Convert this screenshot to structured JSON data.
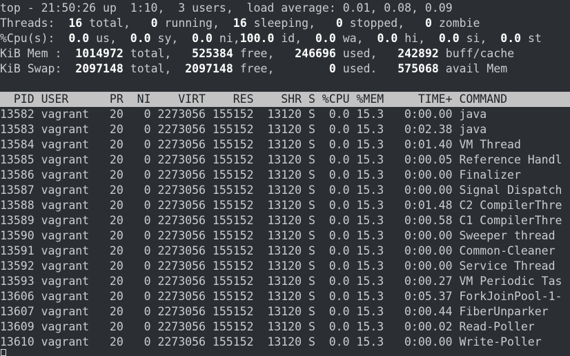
{
  "summary": [
    [
      {
        "t": "top - 21:50:26 up  1:10,  3 users,  load average: 0.01, 0.08, 0.09",
        "b": false
      }
    ],
    [
      {
        "t": "Threads: ",
        "b": false
      },
      {
        "t": " 16",
        "b": true
      },
      {
        "t": " total, ",
        "b": false
      },
      {
        "t": "  0",
        "b": true
      },
      {
        "t": " running, ",
        "b": false
      },
      {
        "t": " 16",
        "b": true
      },
      {
        "t": " sleeping, ",
        "b": false
      },
      {
        "t": "  0",
        "b": true
      },
      {
        "t": " stopped, ",
        "b": false
      },
      {
        "t": "  0",
        "b": true
      },
      {
        "t": " zombie",
        "b": false
      }
    ],
    [
      {
        "t": "%Cpu(s): ",
        "b": false
      },
      {
        "t": " 0.0",
        "b": true
      },
      {
        "t": " us, ",
        "b": false
      },
      {
        "t": " 0.0",
        "b": true
      },
      {
        "t": " sy, ",
        "b": false
      },
      {
        "t": " 0.0",
        "b": true
      },
      {
        "t": " ni,",
        "b": false
      },
      {
        "t": "100.0",
        "b": true
      },
      {
        "t": " id, ",
        "b": false
      },
      {
        "t": " 0.0",
        "b": true
      },
      {
        "t": " wa, ",
        "b": false
      },
      {
        "t": " 0.0",
        "b": true
      },
      {
        "t": " hi, ",
        "b": false
      },
      {
        "t": " 0.0",
        "b": true
      },
      {
        "t": " si, ",
        "b": false
      },
      {
        "t": " 0.0",
        "b": true
      },
      {
        "t": " st",
        "b": false
      }
    ],
    [
      {
        "t": "KiB Mem : ",
        "b": false
      },
      {
        "t": " 1014972",
        "b": true
      },
      {
        "t": " total, ",
        "b": false
      },
      {
        "t": "  525384",
        "b": true
      },
      {
        "t": " free, ",
        "b": false
      },
      {
        "t": "  246696",
        "b": true
      },
      {
        "t": " used, ",
        "b": false
      },
      {
        "t": "  242892",
        "b": true
      },
      {
        "t": " buff/cache",
        "b": false
      }
    ],
    [
      {
        "t": "KiB Swap: ",
        "b": false
      },
      {
        "t": " 2097148",
        "b": true
      },
      {
        "t": " total, ",
        "b": false
      },
      {
        "t": " 2097148",
        "b": true
      },
      {
        "t": " free, ",
        "b": false
      },
      {
        "t": "       0",
        "b": true
      },
      {
        "t": " used. ",
        "b": false
      },
      {
        "t": "  575068",
        "b": true
      },
      {
        "t": " avail Mem",
        "b": false
      }
    ]
  ],
  "header": {
    "pid": "PID",
    "user": "USER",
    "pr": "PR",
    "ni": "NI",
    "virt": "VIRT",
    "res": "RES",
    "shr": "SHR",
    "s": "S",
    "cpu": "%CPU",
    "mem": "%MEM",
    "time": "TIME+",
    "cmd": "COMMAND"
  },
  "processes": [
    {
      "pid": "13582",
      "user": "vagrant",
      "pr": "20",
      "ni": "0",
      "virt": "2273056",
      "res": "155152",
      "shr": "13120",
      "s": "S",
      "cpu": "0.0",
      "mem": "15.3",
      "time": "0:00.00",
      "cmd": "java"
    },
    {
      "pid": "13583",
      "user": "vagrant",
      "pr": "20",
      "ni": "0",
      "virt": "2273056",
      "res": "155152",
      "shr": "13120",
      "s": "S",
      "cpu": "0.0",
      "mem": "15.3",
      "time": "0:02.38",
      "cmd": "java"
    },
    {
      "pid": "13584",
      "user": "vagrant",
      "pr": "20",
      "ni": "0",
      "virt": "2273056",
      "res": "155152",
      "shr": "13120",
      "s": "S",
      "cpu": "0.0",
      "mem": "15.3",
      "time": "0:01.40",
      "cmd": "VM Thread"
    },
    {
      "pid": "13585",
      "user": "vagrant",
      "pr": "20",
      "ni": "0",
      "virt": "2273056",
      "res": "155152",
      "shr": "13120",
      "s": "S",
      "cpu": "0.0",
      "mem": "15.3",
      "time": "0:00.05",
      "cmd": "Reference Handl"
    },
    {
      "pid": "13586",
      "user": "vagrant",
      "pr": "20",
      "ni": "0",
      "virt": "2273056",
      "res": "155152",
      "shr": "13120",
      "s": "S",
      "cpu": "0.0",
      "mem": "15.3",
      "time": "0:00.00",
      "cmd": "Finalizer"
    },
    {
      "pid": "13587",
      "user": "vagrant",
      "pr": "20",
      "ni": "0",
      "virt": "2273056",
      "res": "155152",
      "shr": "13120",
      "s": "S",
      "cpu": "0.0",
      "mem": "15.3",
      "time": "0:00.00",
      "cmd": "Signal Dispatch"
    },
    {
      "pid": "13588",
      "user": "vagrant",
      "pr": "20",
      "ni": "0",
      "virt": "2273056",
      "res": "155152",
      "shr": "13120",
      "s": "S",
      "cpu": "0.0",
      "mem": "15.3",
      "time": "0:01.48",
      "cmd": "C2 CompilerThre"
    },
    {
      "pid": "13589",
      "user": "vagrant",
      "pr": "20",
      "ni": "0",
      "virt": "2273056",
      "res": "155152",
      "shr": "13120",
      "s": "S",
      "cpu": "0.0",
      "mem": "15.3",
      "time": "0:00.58",
      "cmd": "C1 CompilerThre"
    },
    {
      "pid": "13590",
      "user": "vagrant",
      "pr": "20",
      "ni": "0",
      "virt": "2273056",
      "res": "155152",
      "shr": "13120",
      "s": "S",
      "cpu": "0.0",
      "mem": "15.3",
      "time": "0:00.00",
      "cmd": "Sweeper thread"
    },
    {
      "pid": "13591",
      "user": "vagrant",
      "pr": "20",
      "ni": "0",
      "virt": "2273056",
      "res": "155152",
      "shr": "13120",
      "s": "S",
      "cpu": "0.0",
      "mem": "15.3",
      "time": "0:00.00",
      "cmd": "Common-Cleaner"
    },
    {
      "pid": "13592",
      "user": "vagrant",
      "pr": "20",
      "ni": "0",
      "virt": "2273056",
      "res": "155152",
      "shr": "13120",
      "s": "S",
      "cpu": "0.0",
      "mem": "15.3",
      "time": "0:00.00",
      "cmd": "Service Thread"
    },
    {
      "pid": "13593",
      "user": "vagrant",
      "pr": "20",
      "ni": "0",
      "virt": "2273056",
      "res": "155152",
      "shr": "13120",
      "s": "S",
      "cpu": "0.0",
      "mem": "15.3",
      "time": "0:00.27",
      "cmd": "VM Periodic Tas"
    },
    {
      "pid": "13606",
      "user": "vagrant",
      "pr": "20",
      "ni": "0",
      "virt": "2273056",
      "res": "155152",
      "shr": "13120",
      "s": "S",
      "cpu": "0.0",
      "mem": "15.3",
      "time": "0:05.37",
      "cmd": "ForkJoinPool-1-"
    },
    {
      "pid": "13607",
      "user": "vagrant",
      "pr": "20",
      "ni": "0",
      "virt": "2273056",
      "res": "155152",
      "shr": "13120",
      "s": "S",
      "cpu": "0.0",
      "mem": "15.3",
      "time": "0:00.44",
      "cmd": "FiberUnparker"
    },
    {
      "pid": "13609",
      "user": "vagrant",
      "pr": "20",
      "ni": "0",
      "virt": "2273056",
      "res": "155152",
      "shr": "13120",
      "s": "S",
      "cpu": "0.0",
      "mem": "15.3",
      "time": "0:00.02",
      "cmd": "Read-Poller"
    },
    {
      "pid": "13610",
      "user": "vagrant",
      "pr": "20",
      "ni": "0",
      "virt": "2273056",
      "res": "155152",
      "shr": "13120",
      "s": "S",
      "cpu": "0.0",
      "mem": "15.3",
      "time": "0:00.00",
      "cmd": "Write-Poller"
    }
  ],
  "colors": {
    "background": "#2b2f33",
    "text": "#c9cdd1",
    "bold": "#ffffff",
    "header_bg": "#c3c3c3"
  }
}
